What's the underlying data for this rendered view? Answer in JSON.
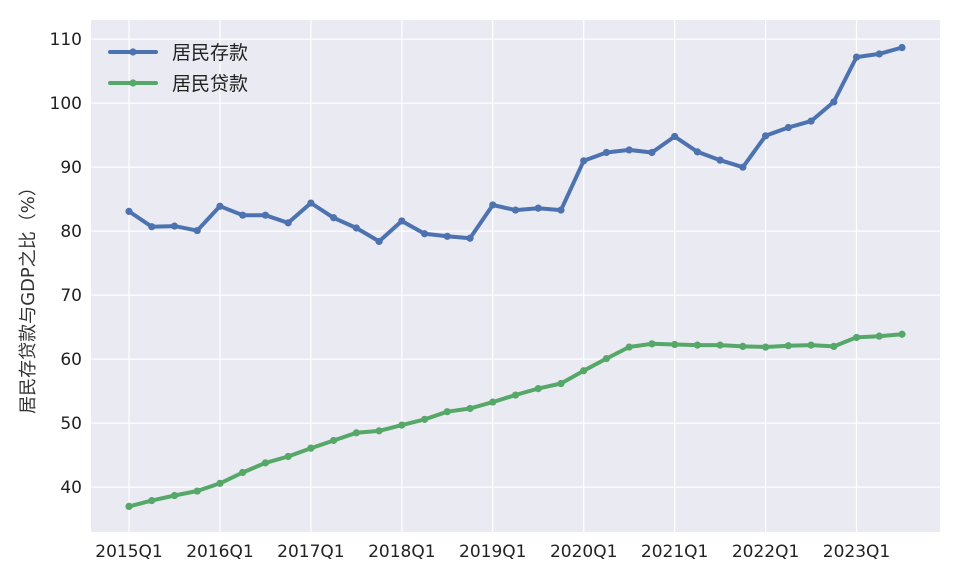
{
  "chart_data": {
    "type": "line",
    "title": "",
    "xlabel": "",
    "ylabel": "居民存贷款与GDP之比（%）",
    "ylim": [
      33,
      113
    ],
    "yticks": [
      40,
      50,
      60,
      70,
      80,
      90,
      100,
      110
    ],
    "x": [
      "2015Q1",
      "2015Q2",
      "2015Q3",
      "2015Q4",
      "2016Q1",
      "2016Q2",
      "2016Q3",
      "2016Q4",
      "2017Q1",
      "2017Q2",
      "2017Q3",
      "2017Q4",
      "2018Q1",
      "2018Q2",
      "2018Q3",
      "2018Q4",
      "2019Q1",
      "2019Q2",
      "2019Q3",
      "2019Q4",
      "2020Q1",
      "2020Q2",
      "2020Q3",
      "2020Q4",
      "2021Q1",
      "2021Q2",
      "2021Q3",
      "2021Q4",
      "2022Q1",
      "2022Q2",
      "2022Q3",
      "2022Q4",
      "2023Q1",
      "2023Q2",
      "2023Q3"
    ],
    "xtick_labels": [
      "2015Q1",
      "2016Q1",
      "2017Q1",
      "2018Q1",
      "2019Q1",
      "2020Q1",
      "2021Q1",
      "2022Q1",
      "2023Q1"
    ],
    "series": [
      {
        "name": "居民存款",
        "color": "#4c72b0",
        "values": [
          83.1,
          80.7,
          80.8,
          80.1,
          83.9,
          82.5,
          82.5,
          81.3,
          84.4,
          82.1,
          80.5,
          78.4,
          81.6,
          79.6,
          79.2,
          78.9,
          84.1,
          83.3,
          83.6,
          83.3,
          91.0,
          92.3,
          92.7,
          92.3,
          94.8,
          92.4,
          91.1,
          90.0,
          94.9,
          96.2,
          97.2,
          100.2,
          107.2,
          107.7,
          108.7
        ]
      },
      {
        "name": "居民贷款",
        "color": "#55a868",
        "values": [
          37.0,
          37.9,
          38.7,
          39.4,
          40.6,
          42.3,
          43.8,
          44.8,
          46.1,
          47.3,
          48.5,
          48.8,
          49.7,
          50.6,
          51.8,
          52.3,
          53.3,
          54.4,
          55.4,
          56.2,
          58.2,
          60.1,
          61.9,
          62.4,
          62.3,
          62.2,
          62.2,
          62.0,
          61.9,
          62.1,
          62.2,
          62.0,
          63.4,
          63.6,
          63.9
        ]
      }
    ],
    "grid": true,
    "legend_position": "top-left",
    "background_color": "#eaeaf2",
    "grid_color": "#ffffff"
  }
}
